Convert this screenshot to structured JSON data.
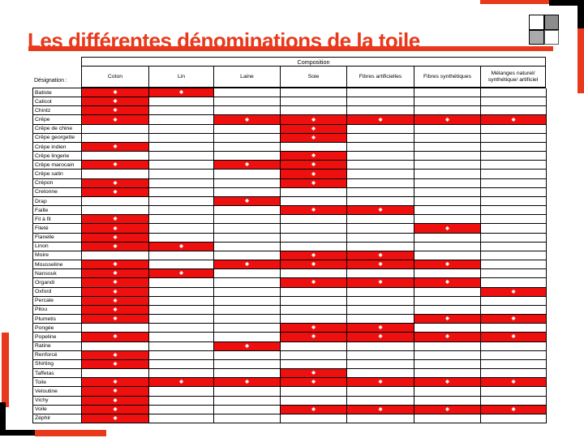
{
  "slide": {
    "title": "Les différentes dénominations de la toile",
    "accent_color": "#e8391c",
    "cell_red": "#ee0f0f",
    "logo_gray_dark": "#8c8c8c",
    "logo_gray_light": "#aaaaaa",
    "marker_glyph": "◆"
  },
  "table": {
    "composition_header": "Composition",
    "designation_label": "Désignation :",
    "columns": [
      "Coton",
      "Lin",
      "Laine",
      "Soie",
      "Fibres artificielles",
      "Fibres synthétiques",
      "Mélanges naturel/ synthétique/ artificiel"
    ],
    "rows": [
      {
        "label": "Batiste",
        "marks": [
          1,
          1,
          0,
          0,
          0,
          0,
          0
        ]
      },
      {
        "label": "Calicot",
        "marks": [
          1,
          0,
          0,
          0,
          0,
          0,
          0
        ]
      },
      {
        "label": "Chintz",
        "marks": [
          1,
          0,
          0,
          0,
          0,
          0,
          0
        ]
      },
      {
        "label": "Crêpe",
        "marks": [
          1,
          0,
          1,
          1,
          1,
          1,
          1
        ]
      },
      {
        "label": "Crêpe de chine",
        "marks": [
          0,
          0,
          0,
          1,
          0,
          0,
          0
        ]
      },
      {
        "label": "Crêpe georgette",
        "marks": [
          0,
          0,
          0,
          1,
          0,
          0,
          0
        ]
      },
      {
        "label": "Crêpe indien",
        "marks": [
          1,
          0,
          0,
          0,
          0,
          0,
          0
        ]
      },
      {
        "label": "Crêpe lingerie",
        "marks": [
          0,
          0,
          0,
          1,
          0,
          0,
          0
        ]
      },
      {
        "label": "Crêpe marocain",
        "marks": [
          1,
          0,
          1,
          1,
          0,
          0,
          0
        ]
      },
      {
        "label": "Crêpe satin",
        "marks": [
          0,
          0,
          0,
          1,
          0,
          0,
          0
        ]
      },
      {
        "label": "Crépon",
        "marks": [
          1,
          0,
          0,
          1,
          0,
          0,
          0
        ]
      },
      {
        "label": "Cretonne",
        "marks": [
          1,
          0,
          0,
          0,
          0,
          0,
          0
        ]
      },
      {
        "label": "Drap",
        "marks": [
          0,
          0,
          1,
          0,
          0,
          0,
          0
        ]
      },
      {
        "label": "Faille",
        "marks": [
          0,
          0,
          0,
          1,
          1,
          0,
          0
        ]
      },
      {
        "label": "Fil à fil",
        "marks": [
          1,
          0,
          0,
          0,
          0,
          0,
          0
        ]
      },
      {
        "label": "Fileté",
        "marks": [
          1,
          0,
          0,
          0,
          0,
          1,
          0
        ]
      },
      {
        "label": "Flanelle",
        "marks": [
          1,
          0,
          0,
          0,
          0,
          0,
          0
        ]
      },
      {
        "label": "Linon",
        "marks": [
          1,
          1,
          0,
          0,
          0,
          0,
          0
        ]
      },
      {
        "label": "Moire",
        "marks": [
          0,
          0,
          0,
          1,
          1,
          0,
          0
        ]
      },
      {
        "label": "Mousseline",
        "marks": [
          1,
          0,
          1,
          1,
          1,
          1,
          0
        ]
      },
      {
        "label": "Nansouk",
        "marks": [
          1,
          1,
          0,
          0,
          0,
          0,
          0
        ]
      },
      {
        "label": "Organdi",
        "marks": [
          1,
          0,
          0,
          1,
          1,
          1,
          0
        ]
      },
      {
        "label": "Oxford",
        "marks": [
          1,
          0,
          0,
          0,
          0,
          0,
          1
        ]
      },
      {
        "label": "Percale",
        "marks": [
          1,
          0,
          0,
          0,
          0,
          0,
          0
        ]
      },
      {
        "label": "Pilou",
        "marks": [
          1,
          0,
          0,
          0,
          0,
          0,
          0
        ]
      },
      {
        "label": "Plumetis",
        "marks": [
          1,
          0,
          0,
          0,
          0,
          1,
          1
        ]
      },
      {
        "label": "Pongée",
        "marks": [
          0,
          0,
          0,
          1,
          1,
          0,
          0
        ]
      },
      {
        "label": "Popeline",
        "marks": [
          1,
          0,
          0,
          1,
          1,
          1,
          1
        ]
      },
      {
        "label": "Ratine",
        "marks": [
          0,
          0,
          1,
          0,
          0,
          0,
          0
        ]
      },
      {
        "label": "Renforcé",
        "marks": [
          1,
          0,
          0,
          0,
          0,
          0,
          0
        ]
      },
      {
        "label": "Shirting",
        "marks": [
          1,
          0,
          0,
          0,
          0,
          0,
          0
        ]
      },
      {
        "label": "Taffetas",
        "marks": [
          0,
          0,
          0,
          1,
          0,
          0,
          0
        ]
      },
      {
        "label": "Toile",
        "marks": [
          1,
          1,
          1,
          1,
          1,
          1,
          1
        ]
      },
      {
        "label": "Veloutine",
        "marks": [
          1,
          0,
          0,
          0,
          0,
          0,
          0
        ]
      },
      {
        "label": "Vichy",
        "marks": [
          1,
          0,
          0,
          0,
          0,
          0,
          0
        ]
      },
      {
        "label": "Voile",
        "marks": [
          1,
          0,
          0,
          1,
          1,
          1,
          1
        ]
      },
      {
        "label": "Zéphir",
        "marks": [
          1,
          0,
          0,
          0,
          0,
          0,
          0
        ]
      }
    ]
  }
}
